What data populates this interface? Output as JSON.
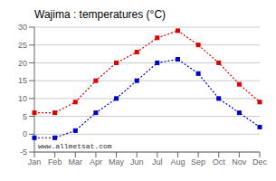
{
  "chart_data": {
    "type": "line",
    "title": "Wajima : temperatures (°C)",
    "categories": [
      "Jan",
      "Feb",
      "Mar",
      "Apr",
      "May",
      "Jun",
      "Jul",
      "Aug",
      "Sep",
      "Oct",
      "Nov",
      "Dec"
    ],
    "series": [
      {
        "color": "#dd0000",
        "marker": "square",
        "line_style": "dotted",
        "values": [
          6,
          6,
          9,
          15,
          20,
          23,
          27,
          29,
          25,
          20,
          14,
          9
        ]
      },
      {
        "color": "#0000cc",
        "marker": "square",
        "line_style": "dotted",
        "values": [
          -1,
          -1,
          1,
          6,
          10,
          15,
          20,
          21,
          17,
          10,
          6,
          2
        ]
      }
    ],
    "ylim": [
      -5,
      30
    ],
    "yticks": [
      -5,
      0,
      5,
      10,
      15,
      20,
      25,
      30
    ],
    "grid": true,
    "annotations": [
      "www.allmetsat.com"
    ]
  }
}
